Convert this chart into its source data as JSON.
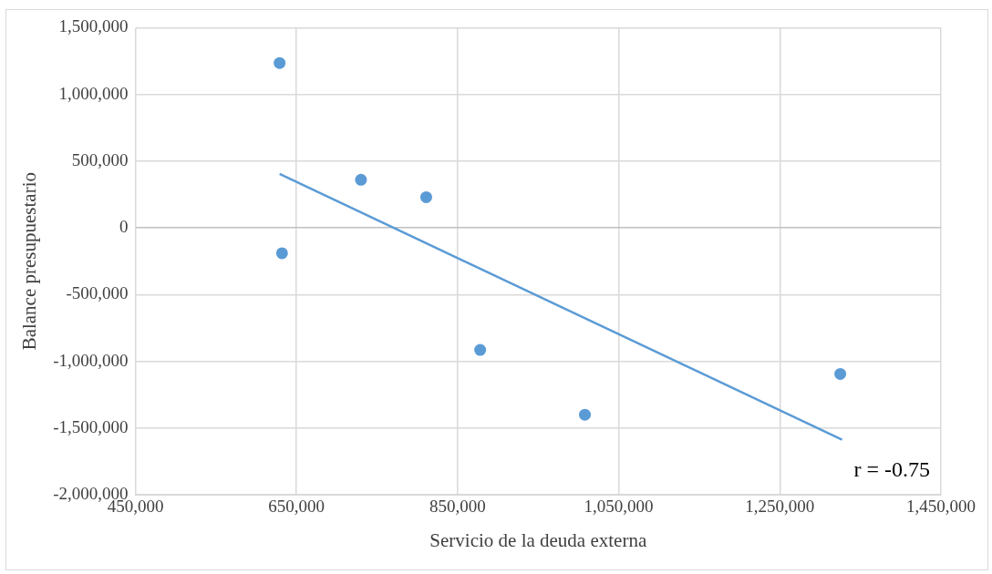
{
  "chart_data": {
    "type": "scatter",
    "xlabel": "Servicio de la deuda externa",
    "ylabel": "Balance presupuestario",
    "series": [
      {
        "type": "scatter",
        "color": "#5b9bd5",
        "x": [
          629000,
          632000,
          730000,
          811000,
          878000,
          1008000,
          1325000
        ],
        "values": [
          1235000,
          -190000,
          360000,
          230000,
          -915000,
          -1400000,
          -1095000
        ]
      },
      {
        "type": "line",
        "color": "#5b9bd5",
        "x": [
          629000,
          1327300
        ],
        "values": [
          404000,
          -1587000
        ],
        "marker": "none"
      }
    ],
    "xlim": [
      450000,
      1450000
    ],
    "xticks": [
      {
        "value": 450000,
        "label": "450,000"
      },
      {
        "value": 650000,
        "label": "650,000"
      },
      {
        "value": 850000,
        "label": "850,000"
      },
      {
        "value": 1050000,
        "label": "1,050,000"
      },
      {
        "value": 1250000,
        "label": "1,250,000"
      },
      {
        "value": 1450000,
        "label": "1,450,000"
      }
    ],
    "ylim": [
      -2000000,
      1500000
    ],
    "yticks": [
      {
        "value": -2000000,
        "label": "-2,000,000"
      },
      {
        "value": -1500000,
        "label": "-1,500,000"
      },
      {
        "value": -1000000,
        "label": "-1,000,000"
      },
      {
        "value": -500000,
        "label": "-500,000"
      },
      0,
      {
        "value": 500000,
        "label": "500,000"
      },
      {
        "value": 1000000,
        "label": "1,000,000"
      },
      {
        "value": 1500000,
        "label": "1,500,000"
      }
    ],
    "grid": true,
    "marker": "circle",
    "annotations": [
      "r = -0.75"
    ]
  }
}
